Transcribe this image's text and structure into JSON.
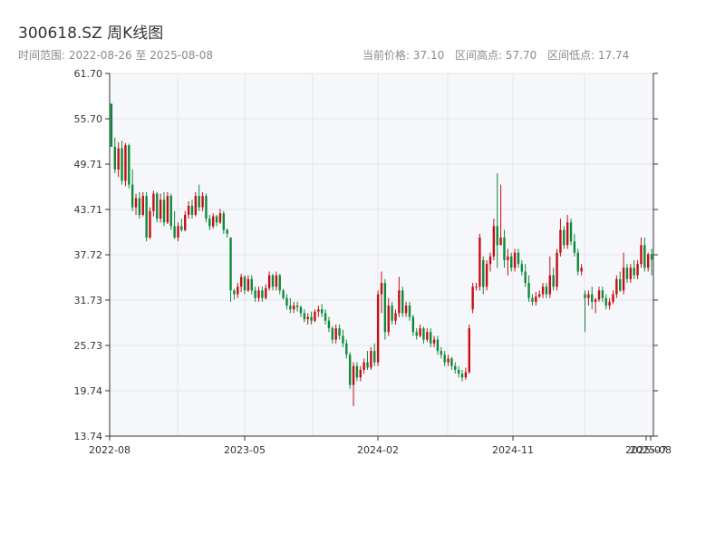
{
  "header": {
    "title": "300618.SZ 周K线图",
    "range_text": "时间范围: 2022-08-26 至 2025-08-08",
    "current_price": "当前价格: 37.10",
    "range_high": "区间高点: 57.70",
    "range_low": "区间低点: 17.74"
  },
  "colors": {
    "up": "#c40f14",
    "down": "#0f8a3c",
    "plot_bg": "#f5f7fa",
    "grid": "#e3e6ea",
    "axis": "#333333"
  },
  "chart_data": {
    "type": "candlestick",
    "title": "300618.SZ 周K线图",
    "ylim": [
      13.74,
      61.7
    ],
    "y_ticks": [
      "13.74",
      "19.74",
      "25.73",
      "31.73",
      "37.72",
      "43.71",
      "49.71",
      "55.70",
      "61.70"
    ],
    "x_ticks": [
      "2022-08",
      "2023-05",
      "2024-02",
      "2024-11",
      "2025-07",
      "2025-08"
    ],
    "grid": true,
    "candles": [
      [
        57.7,
        57.7,
        52.0,
        52.0
      ],
      [
        52.0,
        53.2,
        48.5,
        49.0
      ],
      [
        49.0,
        52.6,
        48.0,
        51.8
      ],
      [
        51.8,
        52.8,
        47.0,
        47.5
      ],
      [
        47.5,
        52.5,
        46.8,
        52.2
      ],
      [
        52.2,
        52.4,
        46.5,
        47.0
      ],
      [
        47.0,
        49.0,
        43.5,
        44.0
      ],
      [
        44.0,
        45.8,
        43.0,
        45.2
      ],
      [
        45.2,
        46.0,
        42.5,
        43.0
      ],
      [
        43.0,
        46.0,
        42.8,
        45.5
      ],
      [
        45.5,
        46.0,
        39.5,
        40.0
      ],
      [
        40.0,
        44.0,
        39.8,
        43.5
      ],
      [
        43.5,
        46.2,
        42.8,
        45.8
      ],
      [
        45.8,
        46.0,
        42.0,
        42.5
      ],
      [
        42.5,
        45.8,
        42.0,
        45.0
      ],
      [
        45.0,
        46.0,
        41.5,
        42.0
      ],
      [
        42.0,
        46.0,
        41.8,
        45.5
      ],
      [
        45.5,
        45.8,
        41.0,
        41.5
      ],
      [
        41.5,
        43.5,
        39.8,
        40.0
      ],
      [
        40.0,
        42.0,
        39.5,
        41.5
      ],
      [
        41.5,
        42.5,
        40.8,
        41.0
      ],
      [
        41.0,
        43.5,
        40.8,
        43.0
      ],
      [
        43.0,
        44.8,
        42.5,
        44.2
      ],
      [
        44.2,
        45.0,
        42.5,
        43.0
      ],
      [
        43.0,
        46.0,
        42.8,
        45.5
      ],
      [
        45.5,
        47.0,
        43.5,
        44.0
      ],
      [
        44.0,
        46.0,
        43.5,
        45.5
      ],
      [
        45.5,
        45.8,
        42.0,
        42.5
      ],
      [
        42.5,
        43.0,
        41.0,
        41.5
      ],
      [
        41.5,
        43.2,
        41.2,
        42.8
      ],
      [
        42.8,
        43.0,
        41.5,
        42.0
      ],
      [
        42.0,
        43.8,
        41.8,
        43.2
      ],
      [
        43.2,
        43.5,
        40.5,
        41.0
      ],
      [
        41.0,
        41.2,
        40.0,
        40.5
      ],
      [
        40.0,
        40.0,
        31.5,
        33.0
      ],
      [
        33.0,
        33.2,
        31.8,
        32.5
      ],
      [
        32.5,
        34.0,
        32.0,
        33.5
      ],
      [
        33.5,
        35.2,
        32.8,
        34.8
      ],
      [
        34.8,
        35.0,
        32.5,
        33.0
      ],
      [
        33.0,
        35.0,
        32.8,
        34.5
      ],
      [
        34.5,
        35.0,
        32.5,
        33.0
      ],
      [
        33.0,
        33.5,
        31.5,
        32.0
      ],
      [
        32.0,
        33.5,
        31.5,
        33.0
      ],
      [
        33.0,
        33.5,
        31.5,
        32.0
      ],
      [
        32.0,
        33.8,
        31.8,
        33.3
      ],
      [
        33.3,
        35.5,
        33.0,
        35.0
      ],
      [
        35.0,
        35.2,
        33.0,
        33.5
      ],
      [
        33.5,
        35.5,
        33.0,
        35.0
      ],
      [
        35.0,
        35.2,
        32.5,
        33.0
      ],
      [
        33.0,
        33.2,
        31.8,
        32.0
      ],
      [
        32.0,
        32.5,
        30.5,
        31.0
      ],
      [
        31.0,
        32.0,
        30.0,
        30.5
      ],
      [
        30.5,
        31.5,
        30.0,
        31.0
      ],
      [
        31.0,
        31.5,
        30.2,
        30.8
      ],
      [
        30.8,
        31.0,
        29.5,
        30.0
      ],
      [
        30.0,
        30.5,
        28.8,
        29.2
      ],
      [
        29.2,
        30.0,
        28.5,
        29.5
      ],
      [
        29.5,
        30.2,
        28.5,
        29.0
      ],
      [
        29.0,
        30.5,
        28.8,
        30.2
      ],
      [
        30.2,
        31.0,
        29.5,
        30.5
      ],
      [
        30.5,
        31.2,
        29.5,
        30.0
      ],
      [
        30.0,
        30.5,
        28.5,
        29.0
      ],
      [
        29.0,
        29.5,
        27.5,
        28.0
      ],
      [
        28.0,
        28.3,
        26.0,
        26.5
      ],
      [
        26.5,
        28.5,
        26.0,
        28.0
      ],
      [
        28.0,
        28.5,
        26.5,
        27.0
      ],
      [
        27.0,
        27.8,
        25.5,
        26.0
      ],
      [
        26.0,
        26.5,
        24.0,
        24.5
      ],
      [
        24.5,
        24.8,
        20.0,
        20.5
      ],
      [
        20.5,
        23.5,
        17.7,
        23.0
      ],
      [
        23.0,
        23.5,
        21.0,
        21.5
      ],
      [
        21.5,
        23.0,
        21.0,
        22.5
      ],
      [
        22.5,
        24.0,
        22.0,
        23.5
      ],
      [
        23.5,
        25.0,
        22.5,
        22.8
      ],
      [
        22.8,
        25.5,
        22.5,
        25.0
      ],
      [
        25.0,
        26.0,
        23.0,
        23.5
      ],
      [
        23.5,
        33.0,
        23.0,
        32.5
      ],
      [
        32.5,
        35.5,
        30.0,
        34.0
      ],
      [
        34.0,
        34.5,
        26.5,
        27.5
      ],
      [
        27.5,
        32.0,
        27.0,
        31.0
      ],
      [
        31.0,
        31.5,
        28.5,
        29.0
      ],
      [
        29.0,
        30.5,
        28.5,
        30.0
      ],
      [
        30.0,
        34.8,
        29.5,
        33.0
      ],
      [
        33.0,
        33.5,
        29.5,
        30.0
      ],
      [
        30.0,
        31.5,
        29.5,
        31.0
      ],
      [
        31.0,
        31.5,
        29.0,
        29.5
      ],
      [
        29.5,
        29.8,
        27.0,
        27.5
      ],
      [
        27.5,
        28.0,
        26.5,
        27.0
      ],
      [
        27.0,
        28.5,
        26.8,
        28.0
      ],
      [
        28.0,
        28.2,
        26.0,
        26.5
      ],
      [
        26.5,
        28.0,
        26.2,
        27.5
      ],
      [
        27.5,
        28.0,
        25.5,
        26.0
      ],
      [
        26.0,
        27.0,
        25.5,
        26.5
      ],
      [
        26.5,
        27.0,
        24.5,
        25.0
      ],
      [
        25.0,
        25.5,
        24.0,
        24.5
      ],
      [
        24.5,
        25.0,
        23.0,
        23.5
      ],
      [
        23.5,
        24.5,
        23.0,
        24.0
      ],
      [
        24.0,
        24.2,
        22.5,
        23.0
      ],
      [
        23.0,
        23.5,
        22.0,
        22.5
      ],
      [
        22.5,
        23.0,
        21.5,
        22.0
      ],
      [
        22.0,
        22.5,
        21.0,
        21.5
      ],
      [
        21.5,
        22.8,
        21.2,
        22.2
      ],
      [
        22.2,
        28.5,
        22.0,
        28.0
      ],
      [
        30.5,
        34.0,
        30.0,
        33.5
      ],
      [
        33.5,
        34.0,
        33.0,
        33.5
      ],
      [
        33.5,
        40.5,
        33.0,
        40.0
      ],
      [
        37.0,
        37.5,
        32.5,
        33.5
      ],
      [
        33.5,
        37.0,
        33.0,
        36.5
      ],
      [
        36.5,
        38.0,
        35.5,
        37.5
      ],
      [
        37.5,
        42.5,
        37.0,
        41.5
      ],
      [
        41.5,
        48.5,
        36.0,
        39.0
      ],
      [
        39.0,
        47.0,
        39.0,
        40.0
      ],
      [
        40.0,
        41.0,
        36.0,
        37.0
      ],
      [
        37.0,
        38.5,
        35.0,
        37.5
      ],
      [
        37.5,
        38.0,
        35.5,
        36.0
      ],
      [
        36.0,
        38.5,
        35.5,
        38.0
      ],
      [
        38.0,
        38.5,
        36.0,
        36.5
      ],
      [
        36.5,
        37.0,
        35.0,
        35.5
      ],
      [
        35.5,
        36.5,
        33.5,
        34.0
      ],
      [
        34.0,
        35.0,
        31.5,
        32.0
      ],
      [
        32.0,
        32.5,
        31.0,
        31.5
      ],
      [
        31.5,
        32.8,
        31.0,
        32.2
      ],
      [
        32.2,
        33.0,
        32.0,
        32.5
      ],
      [
        32.5,
        34.0,
        32.0,
        33.5
      ],
      [
        33.5,
        34.0,
        32.0,
        32.5
      ],
      [
        32.5,
        37.5,
        32.0,
        35.0
      ],
      [
        35.0,
        36.0,
        33.0,
        33.5
      ],
      [
        33.5,
        38.5,
        33.0,
        38.0
      ],
      [
        38.0,
        42.5,
        37.5,
        41.0
      ],
      [
        41.0,
        41.5,
        38.5,
        39.0
      ],
      [
        39.0,
        43.0,
        38.5,
        42.0
      ],
      [
        42.0,
        42.5,
        39.0,
        39.5
      ],
      [
        39.5,
        40.5,
        37.5,
        38.0
      ],
      [
        38.0,
        38.5,
        35.0,
        35.5
      ],
      [
        35.5,
        36.5,
        35.0,
        36.0
      ],
      [
        32.5,
        33.0,
        27.5,
        32.0
      ],
      [
        32.0,
        33.0,
        31.0,
        32.5
      ],
      [
        32.5,
        33.5,
        30.5,
        31.5
      ],
      [
        31.5,
        32.0,
        30.0,
        31.8
      ],
      [
        31.8,
        33.5,
        31.5,
        33.0
      ],
      [
        33.0,
        33.5,
        31.5,
        32.0
      ],
      [
        32.0,
        32.5,
        30.5,
        31.0
      ],
      [
        31.0,
        32.0,
        30.5,
        31.5
      ],
      [
        31.5,
        33.0,
        31.2,
        32.5
      ],
      [
        32.5,
        35.0,
        32.0,
        34.5
      ],
      [
        34.5,
        35.5,
        32.8,
        33.0
      ],
      [
        33.0,
        38.0,
        32.5,
        36.0
      ],
      [
        36.0,
        36.5,
        34.0,
        34.5
      ],
      [
        34.5,
        36.5,
        34.0,
        36.0
      ],
      [
        36.0,
        37.0,
        34.5,
        35.0
      ],
      [
        35.0,
        37.0,
        34.5,
        36.5
      ],
      [
        36.5,
        40.0,
        36.0,
        39.0
      ],
      [
        39.0,
        40.0,
        35.5,
        36.0
      ],
      [
        36.0,
        38.0,
        35.5,
        37.8
      ],
      [
        37.8,
        38.5,
        35.0,
        37.1
      ]
    ]
  }
}
